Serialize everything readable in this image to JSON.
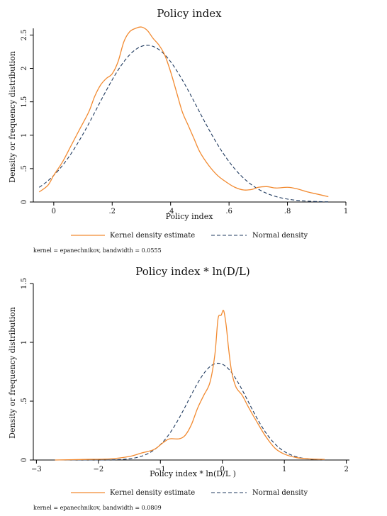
{
  "chart_data": [
    {
      "type": "line",
      "title": "Policy index",
      "xlabel": "Policy index",
      "ylabel": "Density or frequency distribution",
      "xlim": [
        -0.07,
        1.0
      ],
      "ylim": [
        0,
        2.6
      ],
      "xticks": [
        0,
        0.2,
        0.4,
        0.6,
        0.8,
        1
      ],
      "xtick_labels": [
        "0",
        ".2",
        ".4",
        ".6",
        ".8",
        "1"
      ],
      "yticks": [
        0,
        0.5,
        1,
        1.5,
        2,
        2.5
      ],
      "ytick_labels": [
        "0",
        ".5",
        "1",
        "1.5",
        "2",
        "2.5"
      ],
      "legend": {
        "position": "bottom",
        "entries": [
          "Kernel density estimate",
          "Normal density"
        ]
      },
      "note": "kernel = epanechnikov, bandwidth = 0.0555",
      "series": [
        {
          "name": "Kernel density estimate",
          "color": "#f28a30",
          "style": "solid",
          "x": [
            -0.05,
            -0.02,
            0.0,
            0.03,
            0.06,
            0.09,
            0.12,
            0.14,
            0.16,
            0.18,
            0.2,
            0.22,
            0.24,
            0.26,
            0.28,
            0.3,
            0.32,
            0.34,
            0.36,
            0.38,
            0.4,
            0.42,
            0.44,
            0.46,
            0.48,
            0.5,
            0.53,
            0.56,
            0.59,
            0.62,
            0.65,
            0.68,
            0.7,
            0.73,
            0.76,
            0.8,
            0.83,
            0.87,
            0.9,
            0.94
          ],
          "y": [
            0.15,
            0.25,
            0.4,
            0.6,
            0.85,
            1.1,
            1.35,
            1.58,
            1.75,
            1.85,
            1.92,
            2.1,
            2.4,
            2.55,
            2.6,
            2.62,
            2.57,
            2.45,
            2.35,
            2.2,
            1.95,
            1.65,
            1.35,
            1.15,
            0.95,
            0.75,
            0.55,
            0.4,
            0.3,
            0.22,
            0.18,
            0.19,
            0.22,
            0.23,
            0.21,
            0.22,
            0.2,
            0.15,
            0.12,
            0.08
          ]
        },
        {
          "name": "Normal density",
          "color": "#1f3a5f",
          "style": "dashed",
          "mean": 0.32,
          "sd": 0.17,
          "x_range": [
            -0.05,
            0.94
          ]
        }
      ]
    },
    {
      "type": "line",
      "title": "Policy index * ln(D/L)",
      "xlabel": "Policy index * ln(D/L  )",
      "ylabel": "Density or frequency distribution",
      "xlim": [
        -3.05,
        2.05
      ],
      "ylim": [
        0,
        1.5
      ],
      "xticks": [
        -3,
        -2,
        -1,
        0,
        1,
        2
      ],
      "xtick_labels": [
        "−3",
        "−2",
        "−1",
        "0",
        "1",
        "2"
      ],
      "yticks": [
        0,
        0.5,
        1,
        1.5
      ],
      "ytick_labels": [
        "0",
        ".5",
        "1",
        "1.5"
      ],
      "legend": {
        "position": "bottom",
        "entries": [
          "Kernel density estimate",
          "Normal density"
        ]
      },
      "note": "kernel = epanechnikov, bandwidth = 0.0809",
      "series": [
        {
          "name": "Kernel density estimate",
          "color": "#f28a30",
          "style": "solid",
          "x": [
            -2.7,
            -2.2,
            -1.8,
            -1.5,
            -1.3,
            -1.1,
            -0.95,
            -0.85,
            -0.7,
            -0.6,
            -0.5,
            -0.4,
            -0.3,
            -0.2,
            -0.12,
            -0.07,
            -0.02,
            0.02,
            0.06,
            0.1,
            0.15,
            0.22,
            0.32,
            0.42,
            0.55,
            0.7,
            0.85,
            1.0,
            1.2,
            1.4,
            1.65
          ],
          "y": [
            0.0,
            0.005,
            0.01,
            0.03,
            0.06,
            0.09,
            0.15,
            0.18,
            0.18,
            0.21,
            0.3,
            0.44,
            0.55,
            0.66,
            0.9,
            1.2,
            1.23,
            1.27,
            1.15,
            0.95,
            0.75,
            0.62,
            0.55,
            0.45,
            0.33,
            0.2,
            0.1,
            0.05,
            0.02,
            0.01,
            0.005
          ]
        },
        {
          "name": "Normal density",
          "color": "#1f3a5f",
          "style": "dashed",
          "mean": -0.07,
          "sd": 0.485,
          "x_range": [
            -2.7,
            1.65
          ]
        }
      ]
    }
  ]
}
